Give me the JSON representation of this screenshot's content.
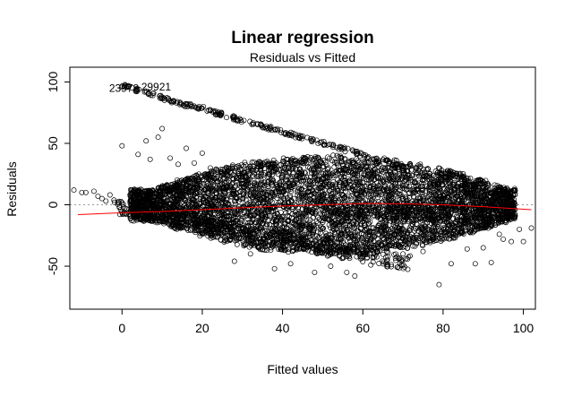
{
  "chart_data": {
    "type": "scatter",
    "title": "Linear regression",
    "subtitle": "Residuals vs Fitted",
    "xlabel": "Fitted values",
    "ylabel": "Residuals",
    "xlim": [
      -13,
      103
    ],
    "ylim": [
      -85,
      112
    ],
    "x_ticks": [
      0,
      20,
      40,
      60,
      80,
      100
    ],
    "y_ticks": [
      -50,
      0,
      50,
      100
    ],
    "x_tick_labels": [
      "0",
      "20",
      "40",
      "60",
      "80",
      "100"
    ],
    "y_tick_labels": [
      "-50",
      "0",
      "50",
      "100"
    ],
    "reference_line": {
      "y": 0,
      "style": "dotted",
      "color": "#999999"
    },
    "marker": {
      "shape": "open-circle",
      "color": "#000000"
    },
    "annotations": [
      {
        "text": "23978",
        "x": 0.5,
        "y": 95
      },
      {
        "text": "29921",
        "x": 8.5,
        "y": 96
      }
    ],
    "smooth_line": {
      "color": "#ff0000",
      "x": [
        -11,
        0,
        10,
        20,
        30,
        40,
        50,
        60,
        70,
        80,
        90,
        102
      ],
      "y": [
        -8,
        -6.5,
        -5.5,
        -4,
        -2.5,
        -1,
        0,
        1,
        0.8,
        0,
        -1.5,
        -4
      ]
    },
    "outlier_points": [
      {
        "x": -12,
        "y": 12
      },
      {
        "x": -10,
        "y": 10
      },
      {
        "x": -9,
        "y": 10
      },
      {
        "x": -7,
        "y": 11
      },
      {
        "x": -6,
        "y": 7
      },
      {
        "x": -5,
        "y": 5
      },
      {
        "x": -4,
        "y": 3
      },
      {
        "x": -3,
        "y": 8
      },
      {
        "x": 0,
        "y": 48
      },
      {
        "x": 3,
        "y": 12
      },
      {
        "x": 4,
        "y": 8
      },
      {
        "x": 4,
        "y": 41
      },
      {
        "x": 6,
        "y": 52
      },
      {
        "x": 7,
        "y": 37
      },
      {
        "x": 9,
        "y": 55
      },
      {
        "x": 10,
        "y": 62
      },
      {
        "x": 12,
        "y": 38
      },
      {
        "x": 14,
        "y": 33
      },
      {
        "x": 16,
        "y": 46
      },
      {
        "x": 18,
        "y": 34
      },
      {
        "x": 20,
        "y": 42
      },
      {
        "x": 22,
        "y": 30
      },
      {
        "x": 28,
        "y": -46
      },
      {
        "x": 32,
        "y": -40
      },
      {
        "x": 38,
        "y": -52
      },
      {
        "x": 42,
        "y": -48
      },
      {
        "x": 48,
        "y": -55
      },
      {
        "x": 52,
        "y": -50
      },
      {
        "x": 56,
        "y": -55
      },
      {
        "x": 58,
        "y": -58
      },
      {
        "x": 62,
        "y": -49
      },
      {
        "x": 70,
        "y": -40
      },
      {
        "x": 75,
        "y": -38
      },
      {
        "x": 79,
        "y": -65
      },
      {
        "x": 82,
        "y": -48
      },
      {
        "x": 86,
        "y": -36
      },
      {
        "x": 88,
        "y": -48
      },
      {
        "x": 90,
        "y": -35
      },
      {
        "x": 92,
        "y": -47
      },
      {
        "x": 94,
        "y": -24
      },
      {
        "x": 95,
        "y": -28
      },
      {
        "x": 96,
        "y": -10
      },
      {
        "x": 96,
        "y": -6
      },
      {
        "x": 97,
        "y": -30
      },
      {
        "x": 99,
        "y": -20
      },
      {
        "x": 100,
        "y": -30
      },
      {
        "x": 102,
        "y": -19
      }
    ],
    "bands": [
      {
        "x": [
          0,
          70
        ],
        "y_start": [
          98,
          33
        ],
        "thickness": 3,
        "count": 240
      },
      {
        "x": [
          -2,
          72
        ],
        "y_start": [
          4,
          -42
        ],
        "thickness": 12,
        "count": 420
      },
      {
        "x": [
          50,
          98
        ],
        "y_start": [
          0,
          0
        ],
        "thickness": 12,
        "count": 260
      }
    ],
    "dense_cloud": {
      "x_range": [
        2,
        98
      ],
      "center_x": 52,
      "upper_y": [
        8,
        40
      ],
      "lower_y": [
        -8,
        -40
      ],
      "count": 5200
    }
  }
}
